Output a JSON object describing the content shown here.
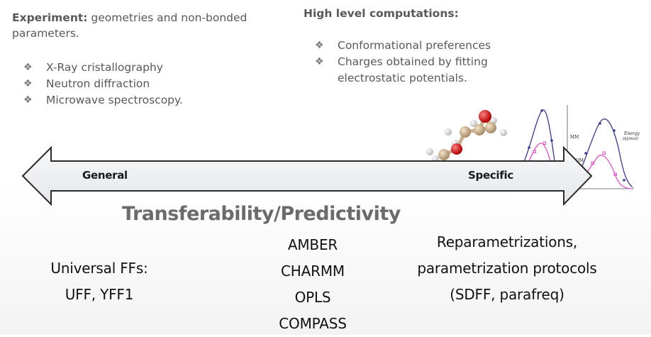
{
  "experiment": {
    "heading": "Experiment:",
    "description": " geometries and non-bonded parameters.",
    "items": [
      "X-Ray cristallography",
      "Neutron diffraction",
      "Microwave spectroscopy."
    ]
  },
  "computations": {
    "heading": "High level computations:",
    "items": [
      "Conformational preferences",
      "Charges obtained by fitting electrostatic potentials."
    ]
  },
  "bullet_glyph": "❖",
  "arrow": {
    "left_label": "General",
    "right_label": "Specific"
  },
  "title": "Transferability/Predictivity",
  "universal": {
    "line1": "Universal FFs:",
    "line2": "UFF, YFF1"
  },
  "standard_ffs": [
    "AMBER",
    "CHARMM",
    "OPLS",
    "COMPASS"
  ],
  "reparam": {
    "line1": "Reparametrizations,",
    "line2": "parametrization protocols",
    "line3": "(SDFF, parafreq)"
  },
  "plot_labels": {
    "mm": "MM",
    "qm": "QM",
    "energy": "Energy",
    "energy_unit": "(kJ/mol)"
  },
  "colors": {
    "mm_curve": "#3a3a8a",
    "qm_curve": "#e050c8",
    "oxygen": "#d81818",
    "carbon": "#c9b08f",
    "hydrogen": "#f2f2f2"
  }
}
